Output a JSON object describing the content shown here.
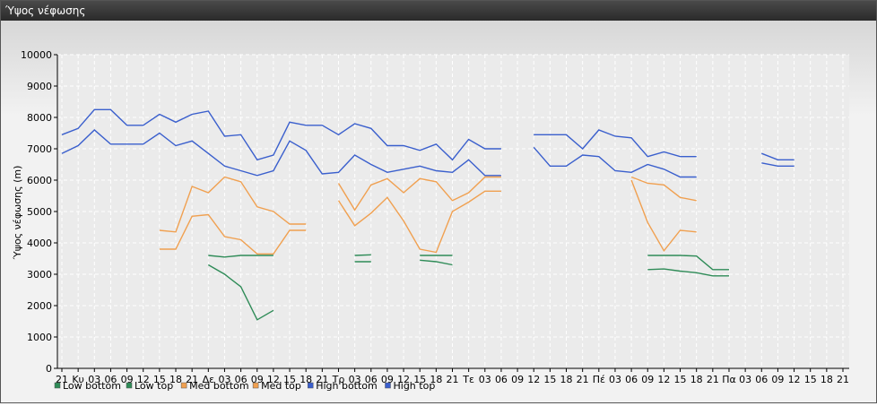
{
  "window": {
    "title": "Ύψος νέφωσης"
  },
  "chart_data": {
    "type": "line",
    "ylabel": "Ύψος νέφωσης (m)",
    "xlabel": "",
    "ylim": [
      0,
      10000
    ],
    "yticks": [
      0,
      1000,
      2000,
      3000,
      4000,
      5000,
      6000,
      7000,
      8000,
      9000,
      10000
    ],
    "grid": true,
    "legend_position": "bottom-left",
    "categories": [
      "21",
      "Κυ",
      "03",
      "06",
      "09",
      "12",
      "15",
      "18",
      "21",
      "Δε",
      "03",
      "06",
      "09",
      "12",
      "15",
      "18",
      "21",
      "Τρ",
      "03",
      "06",
      "09",
      "12",
      "15",
      "18",
      "21",
      "Τε",
      "03",
      "06",
      "09",
      "12",
      "15",
      "18",
      "21",
      "Πέ",
      "03",
      "06",
      "09",
      "12",
      "15",
      "18",
      "21",
      "Πα",
      "03",
      "06",
      "09",
      "12",
      "15",
      "18",
      "21"
    ],
    "series": [
      {
        "name": "Low bottom",
        "color": "#2e8b57",
        "values": [
          null,
          null,
          null,
          null,
          null,
          null,
          null,
          null,
          null,
          3300,
          3000,
          2600,
          1550,
          1850,
          null,
          null,
          null,
          null,
          3400,
          3400,
          null,
          null,
          3450,
          3400,
          3300,
          null,
          null,
          null,
          null,
          null,
          null,
          null,
          null,
          null,
          null,
          null,
          3150,
          3170,
          3100,
          3050,
          2950,
          2950,
          null,
          null,
          null,
          null,
          null,
          null,
          null
        ]
      },
      {
        "name": "Low top",
        "color": "#2e8b57",
        "values": [
          null,
          null,
          null,
          null,
          null,
          null,
          null,
          null,
          null,
          3600,
          3550,
          3600,
          3600,
          3600,
          null,
          null,
          null,
          null,
          3600,
          3620,
          null,
          null,
          3600,
          3600,
          3600,
          null,
          null,
          null,
          null,
          null,
          null,
          null,
          null,
          null,
          null,
          null,
          3600,
          3600,
          3600,
          3580,
          3150,
          3150,
          null,
          null,
          null,
          null,
          null,
          null,
          null
        ]
      },
      {
        "name": "Med bottom",
        "color": "#f0a050",
        "values": [
          null,
          null,
          null,
          null,
          null,
          null,
          3800,
          3800,
          4850,
          4900,
          4200,
          4100,
          3650,
          3650,
          4400,
          4400,
          null,
          5350,
          4550,
          4950,
          5450,
          4700,
          3800,
          3700,
          5000,
          5300,
          5650,
          5650,
          null,
          null,
          null,
          null,
          null,
          null,
          null,
          6000,
          4650,
          3750,
          4400,
          4350,
          null,
          null,
          null,
          null,
          null,
          null,
          null,
          null,
          null
        ]
      },
      {
        "name": "Med top",
        "color": "#f0a050",
        "values": [
          null,
          null,
          null,
          null,
          null,
          null,
          4400,
          4350,
          5800,
          5600,
          6100,
          5950,
          5150,
          5000,
          4600,
          4600,
          null,
          5900,
          5050,
          5850,
          6050,
          5600,
          6050,
          5950,
          5350,
          5600,
          6100,
          6100,
          null,
          null,
          null,
          null,
          null,
          null,
          null,
          6100,
          5900,
          5850,
          5450,
          5350,
          null,
          null,
          null,
          null,
          null,
          null,
          null,
          null,
          null
        ]
      },
      {
        "name": "High bottom",
        "color": "#3a5fcd",
        "values": [
          6850,
          7100,
          7600,
          7150,
          7150,
          7150,
          7500,
          7100,
          7250,
          6850,
          6450,
          6300,
          6150,
          6300,
          7250,
          6950,
          6200,
          6250,
          6800,
          6500,
          6250,
          6350,
          6450,
          6300,
          6250,
          6650,
          6150,
          6150,
          null,
          7050,
          6450,
          6450,
          6800,
          6750,
          6300,
          6250,
          6500,
          6350,
          6100,
          6100,
          null,
          null,
          null,
          6550,
          6450,
          6450,
          null,
          null,
          null
        ]
      },
      {
        "name": "High top",
        "color": "#3a5fcd",
        "values": [
          7450,
          7650,
          8250,
          8250,
          7750,
          7750,
          8100,
          7850,
          8100,
          8200,
          7400,
          7450,
          6650,
          6800,
          7850,
          7750,
          7750,
          7450,
          7800,
          7650,
          7100,
          7100,
          6950,
          7150,
          6650,
          7300,
          7000,
          7000,
          null,
          7450,
          7450,
          7450,
          7000,
          7600,
          7400,
          7350,
          6750,
          6900,
          6750,
          6750,
          null,
          null,
          null,
          6850,
          6650,
          6650,
          null,
          null,
          null
        ]
      }
    ]
  }
}
